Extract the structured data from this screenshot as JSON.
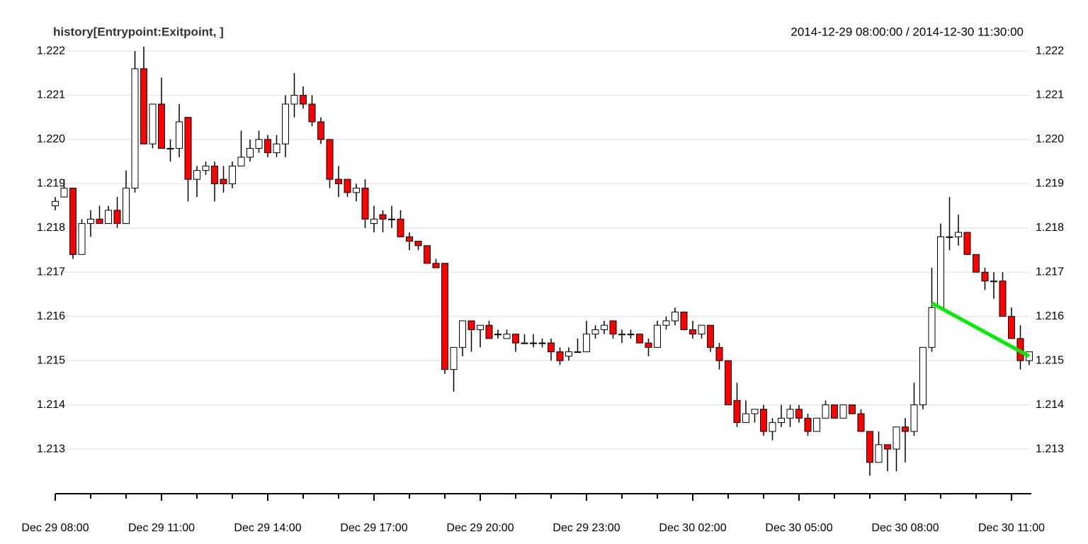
{
  "chart_data": {
    "type": "candlestick",
    "title": "history[Entrypoint:Exitpoint, ]",
    "subtitle": "2014-12-29 08:00:00 / 2014-12-30 11:30:00",
    "categories": [
      "Dec 29 08:00",
      null,
      null,
      null,
      null,
      null,
      null,
      null,
      null,
      null,
      null,
      null,
      "Dec 29 11:00",
      null,
      null,
      null,
      null,
      null,
      null,
      null,
      null,
      null,
      null,
      null,
      "Dec 29 14:00",
      null,
      null,
      null,
      null,
      null,
      null,
      null,
      null,
      null,
      null,
      null,
      "Dec 29 17:00",
      null,
      null,
      null,
      null,
      null,
      null,
      null,
      null,
      null,
      null,
      null,
      "Dec 29 20:00",
      null,
      null,
      null,
      null,
      null,
      null,
      null,
      null,
      null,
      null,
      null,
      "Dec 29 23:00",
      null,
      null,
      null,
      null,
      null,
      null,
      null,
      null,
      null,
      null,
      null,
      "Dec 30 02:00",
      null,
      null,
      null,
      null,
      null,
      null,
      null,
      null,
      null,
      null,
      null,
      "Dec 30 05:00",
      null,
      null,
      null,
      null,
      null,
      null,
      null,
      null,
      null,
      null,
      null,
      "Dec 30 08:00",
      null,
      null,
      null,
      null,
      null,
      null,
      null,
      null,
      null,
      null,
      null,
      "Dec 30 11:00",
      null,
      null
    ],
    "open": [
      1.2185,
      1.2187,
      1.2189,
      1.2174,
      1.2181,
      1.2182,
      1.2181,
      1.2184,
      1.2181,
      1.2189,
      1.2216,
      1.2199,
      1.2208,
      1.2198,
      1.2198,
      1.2205,
      1.2191,
      1.2193,
      1.2194,
      1.2191,
      1.219,
      1.2194,
      1.2196,
      1.2198,
      1.22,
      1.2197,
      1.2199,
      1.2208,
      1.221,
      1.2208,
      1.2204,
      1.22,
      1.2191,
      1.2191,
      1.2188,
      1.2189,
      1.2181,
      1.2183,
      1.2182,
      1.2182,
      1.2178,
      1.2177,
      1.2176,
      1.2172,
      1.2172,
      1.2148,
      1.2153,
      1.2159,
      1.2157,
      1.2158,
      1.2156,
      1.2155,
      1.2156,
      1.2154,
      1.2154,
      1.2154,
      1.2154,
      1.2152,
      1.2151,
      1.2152,
      1.2152,
      1.2156,
      1.2157,
      1.2159,
      1.2156,
      1.2156,
      1.2156,
      1.2154,
      1.2153,
      1.2158,
      1.2159,
      1.2161,
      1.2157,
      1.2156,
      1.2158,
      1.2153,
      1.215,
      1.2141,
      1.2136,
      1.2138,
      1.2139,
      1.2134,
      1.2136,
      1.2137,
      1.2139,
      1.2137,
      1.2134,
      1.2137,
      1.214,
      1.2137,
      1.214,
      1.2138,
      1.2134,
      1.2127,
      1.2131,
      1.213,
      1.2135,
      1.2134,
      1.214,
      1.2153,
      1.2162,
      1.2178,
      1.2178,
      1.2179,
      1.2174,
      1.217,
      1.2168,
      1.2168,
      1.216,
      1.2155,
      1.215
    ],
    "high": [
      1.2187,
      1.2191,
      1.2189,
      1.2182,
      1.2184,
      1.2185,
      1.2185,
      1.2187,
      1.2193,
      1.222,
      1.2221,
      1.2208,
      1.2214,
      1.22,
      1.2208,
      1.2205,
      1.2194,
      1.2195,
      1.2195,
      1.2194,
      1.2195,
      1.2202,
      1.22,
      1.2202,
      1.2201,
      1.2201,
      1.221,
      1.2215,
      1.2212,
      1.221,
      1.2205,
      1.22,
      1.2194,
      1.2191,
      1.219,
      1.2191,
      1.2185,
      1.2184,
      1.2185,
      1.2184,
      1.2179,
      1.2177,
      1.2176,
      1.2173,
      1.2172,
      1.2153,
      1.2159,
      1.2159,
      1.2158,
      1.2159,
      1.2157,
      1.2157,
      1.2156,
      1.2156,
      1.2156,
      1.2155,
      1.2155,
      1.2153,
      1.2153,
      1.2155,
      1.2159,
      1.2158,
      1.2159,
      1.2159,
      1.2157,
      1.2157,
      1.2156,
      1.2155,
      1.2159,
      1.216,
      1.2162,
      1.2161,
      1.2159,
      1.2158,
      1.2158,
      1.2154,
      1.215,
      1.2145,
      1.2141,
      1.2139,
      1.214,
      1.2137,
      1.214,
      1.214,
      1.214,
      1.2138,
      1.2137,
      1.2141,
      1.214,
      1.214,
      1.214,
      1.2139,
      1.2134,
      1.2134,
      1.2131,
      1.2135,
      1.2137,
      1.2145,
      1.2153,
      1.2171,
      1.2181,
      1.2187,
      1.2183,
      1.2179,
      1.2174,
      1.2171,
      1.217,
      1.217,
      1.2162,
      1.2158,
      1.2152
    ],
    "low": [
      1.2184,
      1.2187,
      1.2173,
      1.2174,
      1.2178,
      1.2181,
      1.2181,
      1.218,
      1.2181,
      1.2188,
      1.2199,
      1.2198,
      1.2198,
      1.2195,
      1.2196,
      1.2186,
      1.2187,
      1.2192,
      1.2186,
      1.2188,
      1.2189,
      1.2194,
      1.2195,
      1.2197,
      1.2196,
      1.2196,
      1.2196,
      1.2205,
      1.2207,
      1.2203,
      1.2199,
      1.2189,
      1.2187,
      1.2187,
      1.2186,
      1.218,
      1.2179,
      1.2179,
      1.218,
      1.2178,
      1.2175,
      1.2175,
      1.2172,
      1.2171,
      1.2147,
      1.2143,
      1.2151,
      1.2152,
      1.2153,
      1.2155,
      1.2155,
      1.2155,
      1.2152,
      1.2154,
      1.2153,
      1.2153,
      1.215,
      1.2149,
      1.215,
      1.2152,
      1.2152,
      1.2155,
      1.2156,
      1.2155,
      1.2154,
      1.2155,
      1.2154,
      1.2151,
      1.2153,
      1.2157,
      1.2158,
      1.2157,
      1.2155,
      1.2155,
      1.2152,
      1.2148,
      1.214,
      1.2135,
      1.2136,
      1.2136,
      1.2133,
      1.2132,
      1.2135,
      1.2135,
      1.2136,
      1.2133,
      1.2134,
      1.2137,
      1.2137,
      1.2137,
      1.2138,
      1.2134,
      1.2124,
      1.2127,
      1.2125,
      1.2125,
      1.2127,
      1.2133,
      1.2139,
      1.2152,
      1.2162,
      1.2175,
      1.2176,
      1.2174,
      1.217,
      1.2166,
      1.2164,
      1.216,
      1.2155,
      1.2148,
      1.2149
    ],
    "close": [
      1.2186,
      1.2189,
      1.2174,
      1.2181,
      1.2182,
      1.2181,
      1.2184,
      1.2181,
      1.2189,
      1.2216,
      1.2199,
      1.2208,
      1.2198,
      1.2198,
      1.2204,
      1.2191,
      1.2193,
      1.2194,
      1.219,
      1.219,
      1.2194,
      1.2196,
      1.2198,
      1.22,
      1.2197,
      1.2199,
      1.2208,
      1.221,
      1.2208,
      1.2204,
      1.22,
      1.2191,
      1.219,
      1.2188,
      1.2189,
      1.2182,
      1.2182,
      1.2182,
      1.2182,
      1.2178,
      1.2177,
      1.2176,
      1.2172,
      1.2171,
      1.2148,
      1.2153,
      1.2159,
      1.2157,
      1.2158,
      1.2155,
      1.2156,
      1.2156,
      1.2154,
      1.2154,
      1.2154,
      1.2154,
      1.2152,
      1.215,
      1.2152,
      1.2152,
      1.2156,
      1.2157,
      1.2158,
      1.2156,
      1.2156,
      1.2156,
      1.2154,
      1.2153,
      1.2158,
      1.2159,
      1.2161,
      1.2157,
      1.2156,
      1.2158,
      1.2153,
      1.215,
      1.214,
      1.2136,
      1.2138,
      1.2139,
      1.2134,
      1.2136,
      1.2137,
      1.2139,
      1.2137,
      1.2134,
      1.2137,
      1.214,
      1.2137,
      1.214,
      1.2138,
      1.2134,
      1.2127,
      1.2131,
      1.213,
      1.2135,
      1.2134,
      1.214,
      1.2153,
      1.2162,
      1.2178,
      1.2178,
      1.2179,
      1.2174,
      1.217,
      1.2168,
      1.2168,
      1.216,
      1.2155,
      1.215,
      1.2152
    ],
    "up_color": "#ffffff",
    "down_color": "#ff0000",
    "trend_line": {
      "color": "#00ee00",
      "x": [
        99,
        110
      ],
      "values": [
        1.2163,
        1.2151
      ]
    },
    "ylim": [
      1.2124,
      1.2221
    ],
    "yticks": [
      1.213,
      1.214,
      1.215,
      1.216,
      1.217,
      1.218,
      1.219,
      {
        "value": 1.22,
        "label": "1.220"
      },
      1.221,
      1.222
    ],
    "grid": true
  }
}
